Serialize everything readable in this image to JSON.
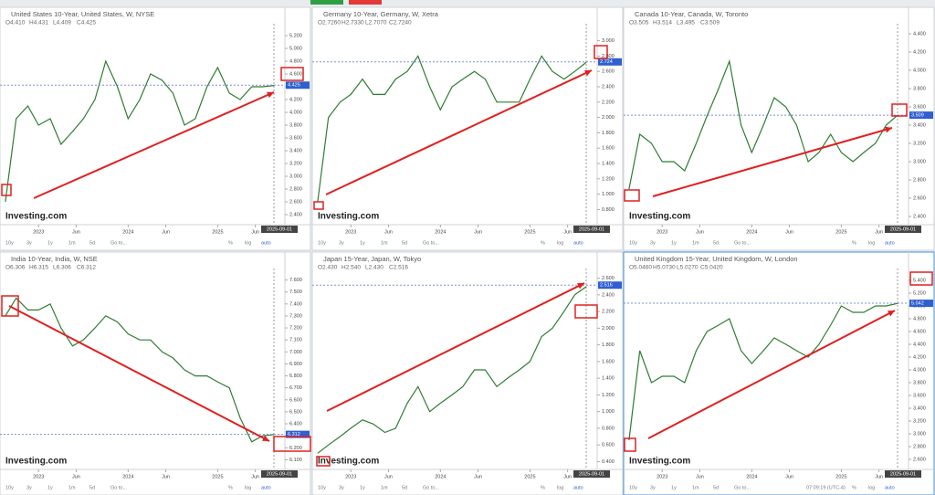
{
  "chart_data": [
    {
      "type": "line",
      "title": "United States 10-Year, United States, W, NYSE",
      "ohlc": [
        "O4.410",
        "H4.431",
        "L4.409",
        "C4.425"
      ],
      "color": "#2e7d32",
      "x": [
        2022.63,
        2022.75,
        2022.88,
        2023.0,
        2023.13,
        2023.25,
        2023.38,
        2023.5,
        2023.63,
        2023.75,
        2023.88,
        2024.0,
        2024.13,
        2024.25,
        2024.38,
        2024.5,
        2024.63,
        2024.75,
        2024.88,
        2025.0,
        2025.13,
        2025.25,
        2025.38,
        2025.5,
        2025.63
      ],
      "values": [
        2.6,
        3.9,
        4.1,
        3.8,
        3.9,
        3.5,
        3.7,
        3.9,
        4.2,
        4.8,
        4.4,
        3.9,
        4.2,
        4.6,
        4.5,
        4.3,
        3.8,
        3.9,
        4.4,
        4.7,
        4.3,
        4.2,
        4.4,
        4.4,
        4.42
      ],
      "xlim": [
        2022.6,
        2025.75
      ],
      "xticks": [
        {
          "value": 2023,
          "label": "2023"
        },
        {
          "value": 2023.42,
          "label": "Jun"
        },
        {
          "value": 2024,
          "label": "2024"
        },
        {
          "value": 2024.42,
          "label": "Jun"
        },
        {
          "value": 2025,
          "label": "2025"
        },
        {
          "value": 2025.42,
          "label": "Jun"
        }
      ],
      "ylim": [
        2.3,
        5.3
      ],
      "yticks": [
        {
          "value": 2.4,
          "label": "2.400"
        },
        {
          "value": 2.6,
          "label": "2.600"
        },
        {
          "value": 2.8,
          "label": "2.800"
        },
        {
          "value": 3.0,
          "label": "3.000"
        },
        {
          "value": 3.2,
          "label": "3.200"
        },
        {
          "value": 3.4,
          "label": "3.400"
        },
        {
          "value": 3.6,
          "label": "3.600"
        },
        {
          "value": 3.8,
          "label": "3.800"
        },
        {
          "value": 4.0,
          "label": "4.000"
        },
        {
          "value": 4.2,
          "label": "4.200"
        },
        {
          "value": 4.4,
          "label": "4.400"
        },
        {
          "value": 4.6,
          "label": "4.600"
        },
        {
          "value": 4.8,
          "label": "4.800"
        },
        {
          "value": 5.0,
          "label": "5.000"
        },
        {
          "value": 5.2,
          "label": "5.200"
        }
      ],
      "last": {
        "value": 4.425,
        "label": "4.425"
      },
      "date_label": "2025-09-01"
    },
    {
      "type": "line",
      "title": "Germany 10-Year, Germany, W, Xetra",
      "ohlc": [
        "O2.7260",
        "H2.7330",
        "L2.7070",
        "C2.7240"
      ],
      "color": "#2e7d32",
      "x": [
        2022.63,
        2022.75,
        2022.88,
        2023.0,
        2023.13,
        2023.25,
        2023.38,
        2023.5,
        2023.63,
        2023.75,
        2023.88,
        2024.0,
        2024.13,
        2024.25,
        2024.38,
        2024.5,
        2024.63,
        2024.75,
        2024.88,
        2025.0,
        2025.13,
        2025.25,
        2025.38,
        2025.5,
        2025.63
      ],
      "values": [
        0.9,
        2.0,
        2.2,
        2.3,
        2.5,
        2.3,
        2.3,
        2.5,
        2.6,
        2.8,
        2.4,
        2.1,
        2.4,
        2.5,
        2.6,
        2.5,
        2.2,
        2.2,
        2.2,
        2.5,
        2.8,
        2.6,
        2.5,
        2.6,
        2.72
      ],
      "xlim": [
        2022.6,
        2025.75
      ],
      "xticks": [
        {
          "value": 2023,
          "label": "2023"
        },
        {
          "value": 2023.42,
          "label": "Jun"
        },
        {
          "value": 2024,
          "label": "2024"
        },
        {
          "value": 2024.42,
          "label": "Jun"
        },
        {
          "value": 2025,
          "label": "2025"
        },
        {
          "value": 2025.42,
          "label": "Jun"
        }
      ],
      "ylim": [
        0.65,
        3.15
      ],
      "yticks": [
        {
          "value": 0.8,
          "label": "0.800"
        },
        {
          "value": 1.0,
          "label": "1.000"
        },
        {
          "value": 1.2,
          "label": "1.200"
        },
        {
          "value": 1.4,
          "label": "1.400"
        },
        {
          "value": 1.6,
          "label": "1.600"
        },
        {
          "value": 1.8,
          "label": "1.800"
        },
        {
          "value": 2.0,
          "label": "2.000"
        },
        {
          "value": 2.2,
          "label": "2.200"
        },
        {
          "value": 2.4,
          "label": "2.400"
        },
        {
          "value": 2.6,
          "label": "2.600"
        },
        {
          "value": 2.8,
          "label": "2.800"
        },
        {
          "value": 3.0,
          "label": "3.000"
        }
      ],
      "last": {
        "value": 2.724,
        "label": "2.724"
      },
      "date_label": "2025-09-01"
    },
    {
      "type": "line",
      "title": "Canada 10-Year, Canada, W, Toronto",
      "ohlc": [
        "O3.505",
        "H3.514",
        "L3.495",
        "C3.509"
      ],
      "color": "#2e7d32",
      "x": [
        2022.63,
        2022.75,
        2022.88,
        2023.0,
        2023.13,
        2023.25,
        2023.38,
        2023.5,
        2023.63,
        2023.75,
        2023.88,
        2024.0,
        2024.13,
        2024.25,
        2024.38,
        2024.5,
        2024.63,
        2024.75,
        2024.88,
        2025.0,
        2025.13,
        2025.25,
        2025.38,
        2025.5,
        2025.63
      ],
      "values": [
        2.7,
        3.3,
        3.2,
        3.0,
        3.0,
        2.9,
        3.2,
        3.5,
        3.8,
        4.1,
        3.4,
        3.1,
        3.4,
        3.7,
        3.6,
        3.4,
        3.0,
        3.1,
        3.3,
        3.1,
        3.0,
        3.1,
        3.2,
        3.4,
        3.51
      ],
      "xlim": [
        2022.6,
        2025.75
      ],
      "xticks": [
        {
          "value": 2023,
          "label": "2023"
        },
        {
          "value": 2023.42,
          "label": "Jun"
        },
        {
          "value": 2024,
          "label": "2024"
        },
        {
          "value": 2024.42,
          "label": "Jun"
        },
        {
          "value": 2025,
          "label": "2025"
        },
        {
          "value": 2025.42,
          "label": "Jun"
        }
      ],
      "ylim": [
        2.35,
        4.45
      ],
      "yticks": [
        {
          "value": 2.4,
          "label": "2.400"
        },
        {
          "value": 2.6,
          "label": "2.600"
        },
        {
          "value": 2.8,
          "label": "2.800"
        },
        {
          "value": 3.0,
          "label": "3.000"
        },
        {
          "value": 3.2,
          "label": "3.200"
        },
        {
          "value": 3.4,
          "label": "3.400"
        },
        {
          "value": 3.6,
          "label": "3.600"
        },
        {
          "value": 3.8,
          "label": "3.800"
        },
        {
          "value": 4.0,
          "label": "4.000"
        },
        {
          "value": 4.2,
          "label": "4.200"
        },
        {
          "value": 4.4,
          "label": "4.400"
        }
      ],
      "last": {
        "value": 3.509,
        "label": "3.509"
      },
      "date_label": "2025-09-01"
    },
    {
      "type": "line",
      "title": "India 10-Year, India, W, NSE",
      "ohlc": [
        "O6.306",
        "H6.315",
        "L6.306",
        "C6.312"
      ],
      "color": "#2e7d32",
      "x": [
        2022.63,
        2022.75,
        2022.88,
        2023.0,
        2023.13,
        2023.25,
        2023.38,
        2023.5,
        2023.63,
        2023.75,
        2023.88,
        2024.0,
        2024.13,
        2024.25,
        2024.38,
        2024.5,
        2024.63,
        2024.75,
        2024.88,
        2025.0,
        2025.13,
        2025.25,
        2025.38,
        2025.5,
        2025.63
      ],
      "values": [
        7.3,
        7.45,
        7.35,
        7.35,
        7.4,
        7.2,
        7.05,
        7.1,
        7.2,
        7.3,
        7.25,
        7.15,
        7.1,
        7.1,
        7.0,
        6.95,
        6.85,
        6.8,
        6.8,
        6.75,
        6.7,
        6.45,
        6.25,
        6.3,
        6.31
      ],
      "xlim": [
        2022.6,
        2025.75
      ],
      "xticks": [
        {
          "value": 2023,
          "label": "2023"
        },
        {
          "value": 2023.42,
          "label": "Jun"
        },
        {
          "value": 2024,
          "label": "2024"
        },
        {
          "value": 2024.42,
          "label": "Jun"
        },
        {
          "value": 2025,
          "label": "2025"
        },
        {
          "value": 2025.42,
          "label": "Jun"
        }
      ],
      "ylim": [
        6.05,
        7.65
      ],
      "yticks": [
        {
          "value": 6.1,
          "label": "6.100"
        },
        {
          "value": 6.2,
          "label": "6.200"
        },
        {
          "value": 6.3,
          "label": "6.300"
        },
        {
          "value": 6.4,
          "label": "6.400"
        },
        {
          "value": 6.5,
          "label": "6.500"
        },
        {
          "value": 6.6,
          "label": "6.600"
        },
        {
          "value": 6.7,
          "label": "6.700"
        },
        {
          "value": 6.8,
          "label": "6.800"
        },
        {
          "value": 6.9,
          "label": "6.900"
        },
        {
          "value": 7.0,
          "label": "7.000"
        },
        {
          "value": 7.1,
          "label": "7.100"
        },
        {
          "value": 7.2,
          "label": "7.200"
        },
        {
          "value": 7.3,
          "label": "7.300"
        },
        {
          "value": 7.4,
          "label": "7.400"
        },
        {
          "value": 7.5,
          "label": "7.500"
        },
        {
          "value": 7.6,
          "label": "7.600"
        }
      ],
      "last": {
        "value": 6.312,
        "label": "6.312"
      },
      "date_label": "2025-09-01"
    },
    {
      "type": "line",
      "title": "Japan 15-Year, Japan, W, Tokyo",
      "ohlc": [
        "O2.430",
        "H2.540",
        "L2.430",
        "C2.516"
      ],
      "color": "#2e7d32",
      "x": [
        2022.63,
        2022.75,
        2022.88,
        2023.0,
        2023.13,
        2023.25,
        2023.38,
        2023.5,
        2023.63,
        2023.75,
        2023.88,
        2024.0,
        2024.13,
        2024.25,
        2024.38,
        2024.5,
        2024.63,
        2024.75,
        2024.88,
        2025.0,
        2025.13,
        2025.25,
        2025.38,
        2025.5,
        2025.63
      ],
      "values": [
        0.5,
        0.6,
        0.7,
        0.8,
        0.9,
        0.85,
        0.75,
        0.8,
        1.1,
        1.3,
        1.0,
        1.1,
        1.2,
        1.3,
        1.5,
        1.5,
        1.3,
        1.4,
        1.5,
        1.6,
        1.9,
        2.0,
        2.2,
        2.4,
        2.5
      ],
      "xlim": [
        2022.6,
        2025.75
      ],
      "xticks": [
        {
          "value": 2023,
          "label": "2023"
        },
        {
          "value": 2023.42,
          "label": "Jun"
        },
        {
          "value": 2024,
          "label": "2024"
        },
        {
          "value": 2024.42,
          "label": "Jun"
        },
        {
          "value": 2025,
          "label": "2025"
        },
        {
          "value": 2025.42,
          "label": "Jun"
        }
      ],
      "ylim": [
        0.35,
        2.65
      ],
      "yticks": [
        {
          "value": 0.4,
          "label": "0.400"
        },
        {
          "value": 0.6,
          "label": "0.600"
        },
        {
          "value": 0.8,
          "label": "0.800"
        },
        {
          "value": 1.0,
          "label": "1.000"
        },
        {
          "value": 1.2,
          "label": "1.200"
        },
        {
          "value": 1.4,
          "label": "1.400"
        },
        {
          "value": 1.6,
          "label": "1.600"
        },
        {
          "value": 1.8,
          "label": "1.800"
        },
        {
          "value": 2.0,
          "label": "2.000"
        },
        {
          "value": 2.2,
          "label": "2.200"
        },
        {
          "value": 2.4,
          "label": "2.400"
        },
        {
          "value": 2.6,
          "label": "2.600"
        }
      ],
      "last": {
        "value": 2.516,
        "label": "2.516"
      },
      "date_label": "2025-09-01"
    },
    {
      "type": "line",
      "title": "United Kingdom 15-Year, United Kingdom, W, London",
      "ohlc": [
        "O5.0460",
        "H5.0730",
        "L5.0270",
        "C5.0420"
      ],
      "color": "#2e7d32",
      "x": [
        2022.63,
        2022.75,
        2022.88,
        2023.0,
        2023.13,
        2023.25,
        2023.38,
        2023.5,
        2023.63,
        2023.75,
        2023.88,
        2024.0,
        2024.13,
        2024.25,
        2024.38,
        2024.5,
        2024.63,
        2024.75,
        2024.88,
        2025.0,
        2025.13,
        2025.25,
        2025.38,
        2025.5,
        2025.63
      ],
      "values": [
        2.9,
        4.3,
        3.8,
        3.9,
        3.9,
        3.8,
        4.3,
        4.6,
        4.7,
        4.8,
        4.3,
        4.1,
        4.3,
        4.5,
        4.4,
        4.3,
        4.2,
        4.4,
        4.7,
        5.0,
        4.9,
        4.9,
        5.0,
        5.0,
        5.04
      ],
      "xlim": [
        2022.6,
        2025.75
      ],
      "xticks": [
        {
          "value": 2023,
          "label": "2023"
        },
        {
          "value": 2023.42,
          "label": "Jun"
        },
        {
          "value": 2024,
          "label": "2024"
        },
        {
          "value": 2024.42,
          "label": "Jun"
        },
        {
          "value": 2025,
          "label": "2025"
        },
        {
          "value": 2025.42,
          "label": "Jun"
        }
      ],
      "ylim": [
        2.5,
        5.5
      ],
      "yticks": [
        {
          "value": 2.6,
          "label": "2.600"
        },
        {
          "value": 2.8,
          "label": "2.800"
        },
        {
          "value": 3.0,
          "label": "3.000"
        },
        {
          "value": 3.2,
          "label": "3.200"
        },
        {
          "value": 3.4,
          "label": "3.400"
        },
        {
          "value": 3.6,
          "label": "3.600"
        },
        {
          "value": 3.8,
          "label": "3.800"
        },
        {
          "value": 4.0,
          "label": "4.000"
        },
        {
          "value": 4.2,
          "label": "4.200"
        },
        {
          "value": 4.4,
          "label": "4.400"
        },
        {
          "value": 4.6,
          "label": "4.600"
        },
        {
          "value": 4.8,
          "label": "4.800"
        },
        {
          "value": 5.0,
          "label": "5.000"
        },
        {
          "value": 5.2,
          "label": "5.200"
        },
        {
          "value": 5.4,
          "label": "5.400"
        }
      ],
      "last": {
        "value": 5.042,
        "label": "5.042"
      },
      "date_label": "2025-09-01"
    }
  ],
  "logo": "Investing.com",
  "toolbar": {
    "ranges": [
      "10y",
      "3y",
      "1y",
      "1m",
      "5d",
      "Go to..."
    ],
    "options": [
      "%",
      "log",
      "auto"
    ]
  },
  "clock": "07:09:19 (UTC-4)"
}
